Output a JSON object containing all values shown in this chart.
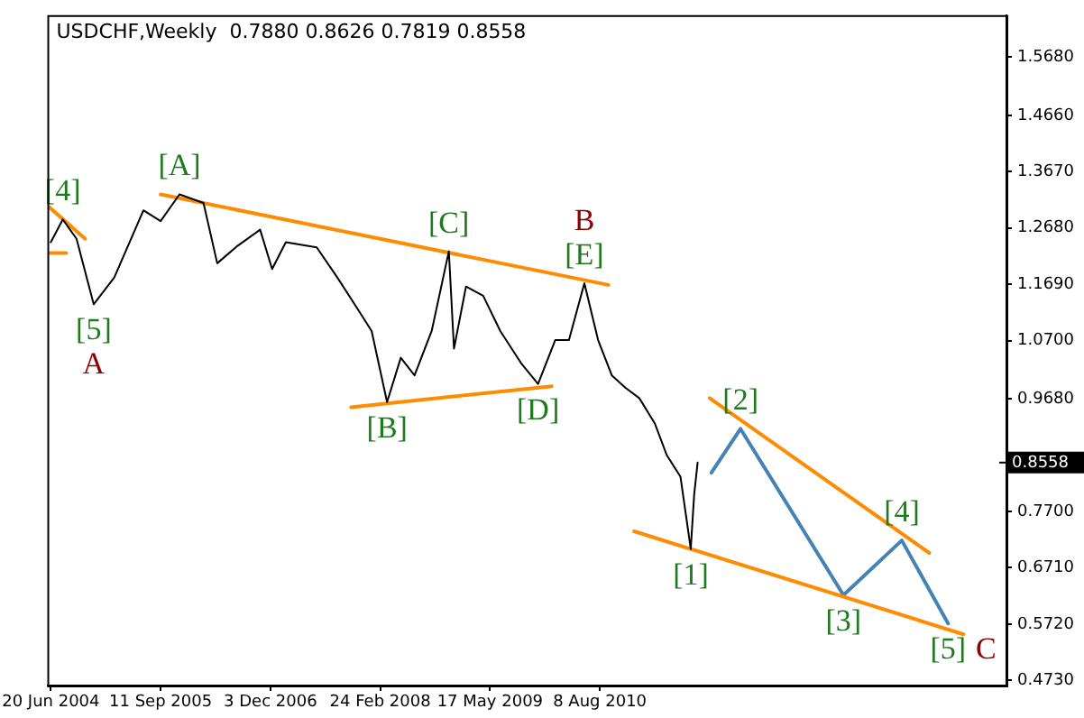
{
  "chart_data": {
    "type": "line",
    "title": "USDCHF,Weekly  0.7880 0.8626 0.7819 0.8558",
    "xlim": [
      "2004-06-06",
      "2015-02-22"
    ],
    "xticks": [
      {
        "value": "2004-06-20",
        "label": "20 Jun 2004"
      },
      {
        "value": "2005-09-11",
        "label": "11 Sep 2005"
      },
      {
        "value": "2006-12-03",
        "label": "3 Dec 2006"
      },
      {
        "value": "2008-02-24",
        "label": "24 Feb 2008"
      },
      {
        "value": "2009-05-17",
        "label": "17 May 2009"
      },
      {
        "value": "2010-08-08",
        "label": "8 Aug 2010"
      }
    ],
    "ylim": [
      0.464,
      1.642
    ],
    "yticks": [
      {
        "value": 0.473,
        "label": "0.4730"
      },
      {
        "value": 0.572,
        "label": "0.5720"
      },
      {
        "value": 0.671,
        "label": "0.6710"
      },
      {
        "value": 0.77,
        "label": "0.7700"
      },
      {
        "value": 0.968,
        "label": "0.9680"
      },
      {
        "value": 1.07,
        "label": "1.0700"
      },
      {
        "value": 1.169,
        "label": "1.1690"
      },
      {
        "value": 1.268,
        "label": "1.2680"
      },
      {
        "value": 1.367,
        "label": "1.3670"
      },
      {
        "value": 1.466,
        "label": "1.4660"
      },
      {
        "value": 1.568,
        "label": "1.5680"
      }
    ],
    "grid": false,
    "legend": false,
    "marker": "none",
    "line_style": "solid",
    "tick_labels": "xy",
    "series": [
      {
        "color": "#000000",
        "x": [
          "2004-06-20",
          "2004-08-08",
          "2004-10-03",
          "2004-12-12",
          "2005-03-06",
          "2005-07-03",
          "2005-09-11",
          "2005-11-27",
          "2006-03-05",
          "2006-04-30",
          "2006-07-23",
          "2006-10-22",
          "2006-12-10",
          "2007-02-04",
          "2007-06-10",
          "2007-09-02",
          "2007-11-25",
          "2008-01-20",
          "2008-03-23",
          "2008-05-18",
          "2008-07-13",
          "2008-09-21",
          "2008-11-30",
          "2008-12-21",
          "2009-02-08",
          "2009-04-19",
          "2009-06-28",
          "2009-09-20",
          "2009-11-29",
          "2010-02-07",
          "2010-04-04",
          "2010-06-06",
          "2010-08-01",
          "2010-09-26",
          "2010-11-21",
          "2011-01-16",
          "2011-03-20",
          "2011-05-08",
          "2011-07-03",
          "2011-08-14",
          "2011-08-28",
          "2011-09-11"
        ],
        "values": [
          1.243,
          1.283,
          1.249,
          1.134,
          1.181,
          1.299,
          1.28,
          1.327,
          1.312,
          1.206,
          1.237,
          1.265,
          1.196,
          1.243,
          1.234,
          1.181,
          1.125,
          1.087,
          0.962,
          1.04,
          1.009,
          1.087,
          1.227,
          1.056,
          1.165,
          1.149,
          1.087,
          1.031,
          0.994,
          1.071,
          1.071,
          1.171,
          1.071,
          1.009,
          0.987,
          0.969,
          0.925,
          0.869,
          0.831,
          0.704,
          0.8,
          0.8558
        ]
      },
      {
        "color": "#ff8c00",
        "x": [
          "2005-09-11",
          "2010-09-12"
        ],
        "values": [
          1.327,
          1.168
        ]
      },
      {
        "color": "#ff8c00",
        "x": [
          "2007-10-28",
          "2010-01-24"
        ],
        "values": [
          0.953,
          0.99
        ]
      },
      {
        "color": "#ff8c00",
        "x": [
          "2010-12-26",
          "2014-08-31"
        ],
        "values": [
          0.735,
          0.554
        ]
      },
      {
        "color": "#ff8c00",
        "x": [
          "2011-10-30",
          "2014-04-13"
        ],
        "values": [
          0.969,
          0.697
        ]
      },
      {
        "color": "#ff8c00",
        "x": [
          "2004-06-13",
          "2004-11-07"
        ],
        "values": [
          1.305,
          1.249
        ]
      },
      {
        "color": "#ff8c00",
        "x": [
          "2004-06-13",
          "2004-08-22"
        ],
        "values": [
          1.224,
          1.224
        ]
      },
      {
        "color": "#4682b4",
        "x": [
          "2011-11-06",
          "2012-03-04",
          "2013-04-28",
          "2013-12-22",
          "2014-06-29"
        ],
        "values": [
          0.838,
          0.915,
          0.623,
          0.719,
          0.573
        ]
      }
    ],
    "ref_lines": [
      {
        "axis": "y",
        "value": 0.8558,
        "label": "0.8558",
        "color": "#000000"
      }
    ],
    "annotations": [
      {
        "text": "[4]",
        "x": "2004-08-08",
        "y": 1.283
      },
      {
        "text": "[5]",
        "x": "2004-12-12",
        "y": 1.134
      },
      {
        "text": "A",
        "x": "2004-12-12",
        "y": 1.134
      },
      {
        "text": "[A]",
        "x": "2005-11-27",
        "y": 1.327
      },
      {
        "text": "[C]",
        "x": "2008-11-30",
        "y": 1.227
      },
      {
        "text": "[E]",
        "x": "2010-06-06",
        "y": 1.171
      },
      {
        "text": "B",
        "x": "2010-06-06",
        "y": 1.171
      },
      {
        "text": "[B]",
        "x": "2008-03-23",
        "y": 0.962
      },
      {
        "text": "[D]",
        "x": "2009-11-29",
        "y": 0.994
      },
      {
        "text": "[1]",
        "x": "2011-08-14",
        "y": 0.704
      },
      {
        "text": "[2]",
        "x": "2012-03-04",
        "y": 0.915
      },
      {
        "text": "[3]",
        "x": "2013-04-28",
        "y": 0.623
      },
      {
        "text": "[4]",
        "x": "2013-12-22",
        "y": 0.719
      },
      {
        "text": "[5]",
        "x": "2014-06-29",
        "y": 0.573
      },
      {
        "text": "C",
        "x": "2014-06-29",
        "y": 0.573
      }
    ]
  }
}
